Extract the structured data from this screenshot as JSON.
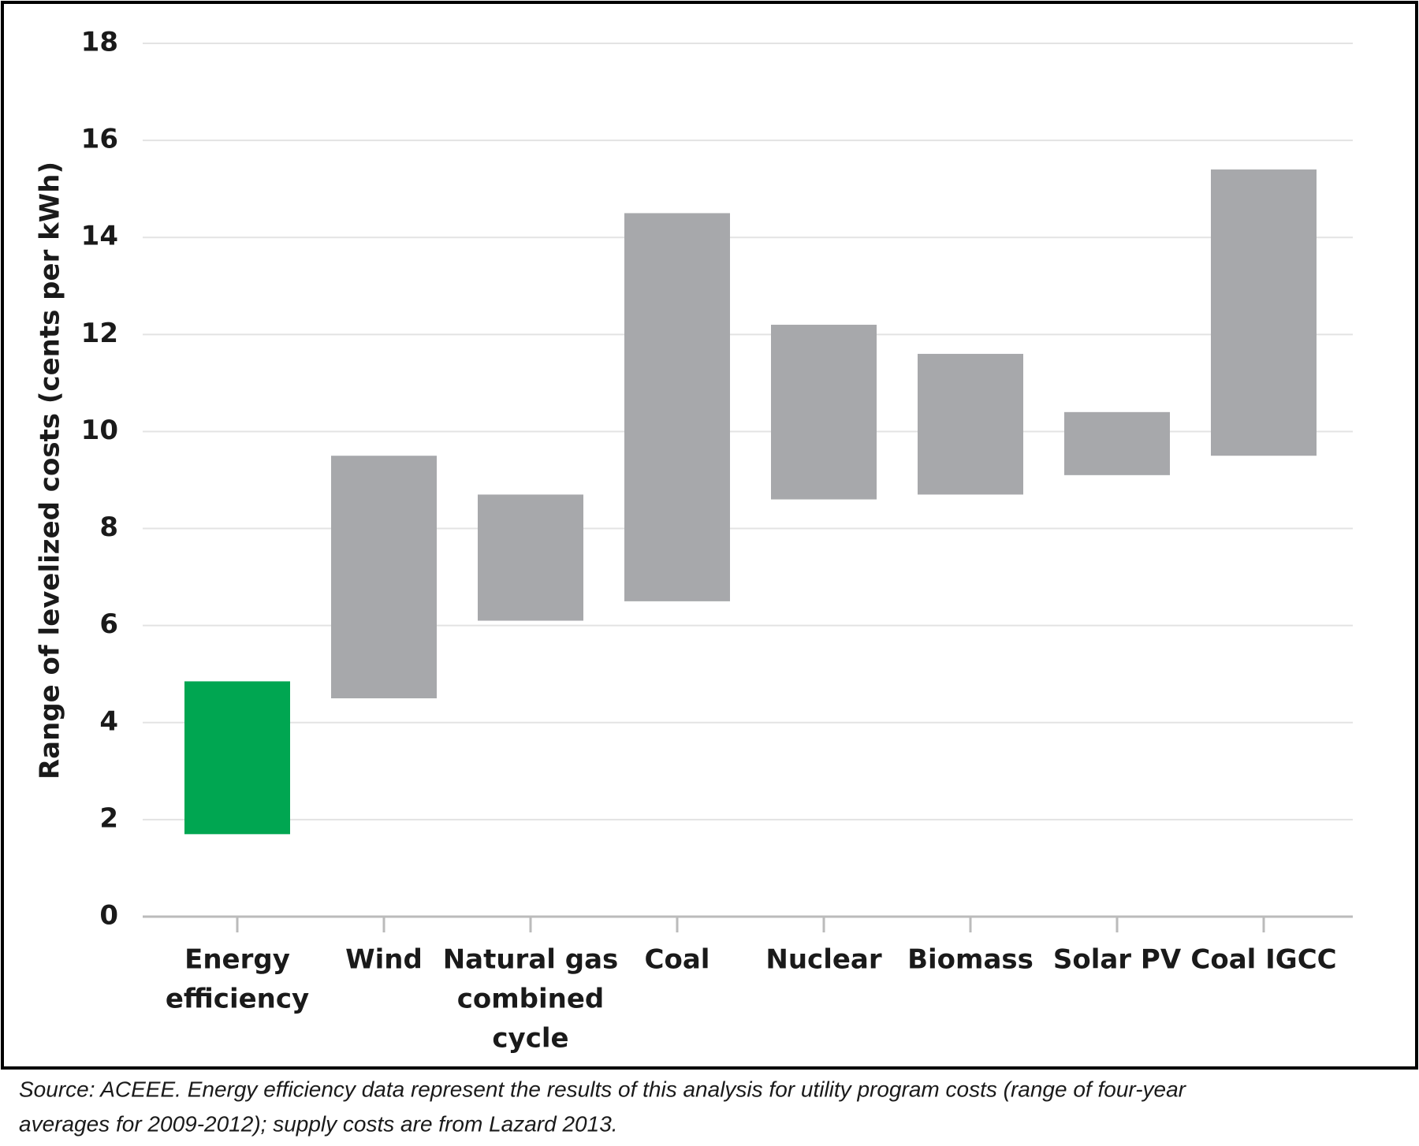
{
  "chart_data": {
    "type": "floating-bar",
    "y_label": "Range of levelized costs (cents per kWh)",
    "categories": [
      [
        "Energy",
        "efficiency"
      ],
      [
        "Wind"
      ],
      [
        "Natural gas",
        "combined",
        "cycle"
      ],
      [
        "Coal"
      ],
      [
        "Nuclear"
      ],
      [
        "Biomass"
      ],
      [
        "Solar PV"
      ],
      [
        "Coal IGCC"
      ]
    ],
    "low": [
      1.7,
      4.5,
      6.1,
      6.5,
      8.6,
      8.7,
      9.1,
      9.5
    ],
    "high": [
      4.85,
      9.5,
      8.7,
      14.5,
      12.2,
      11.6,
      10.4,
      15.4
    ],
    "colors": [
      "#00a651",
      "#a7a8ab",
      "#a7a8ab",
      "#a7a8ab",
      "#a7a8ab",
      "#a7a8ab",
      "#a7a8ab",
      "#a7a8ab"
    ],
    "ylim": [
      0,
      18
    ],
    "yticks": [
      0,
      2,
      4,
      6,
      8,
      10,
      12,
      14,
      16,
      18
    ],
    "grid": true
  },
  "source": [
    "Source: ACEEE. Energy efficiency data represent the results of this analysis for utility program costs (range of four-year",
    "averages for 2009-2012); supply costs are from Lazard 2013."
  ]
}
